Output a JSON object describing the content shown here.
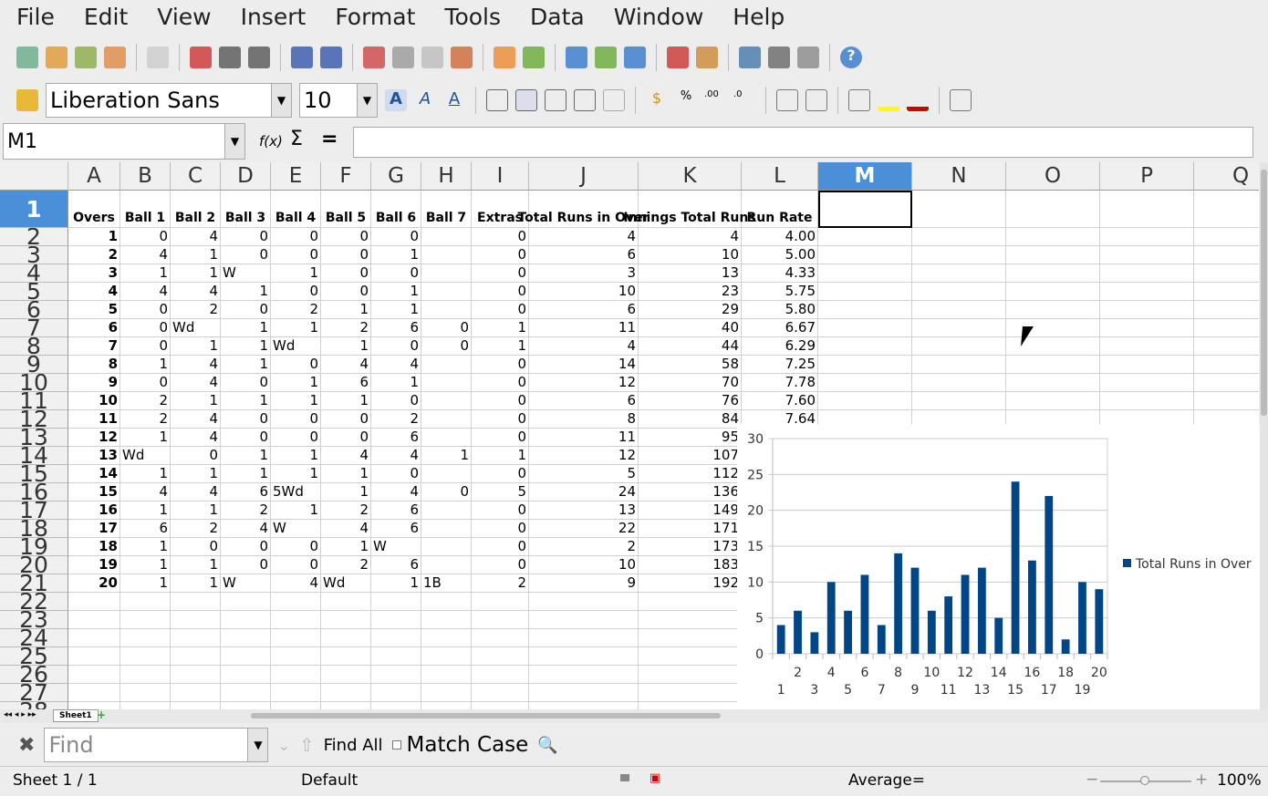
{
  "menu": [
    "File",
    "Edit",
    "View",
    "Insert",
    "Format",
    "Tools",
    "Data",
    "Window",
    "Help"
  ],
  "toolbar": {
    "font_name": "Liberation Sans",
    "font_size": "10"
  },
  "formula": {
    "cell_ref": "M1",
    "fx_icon": "function-wizard-icon",
    "value": ""
  },
  "columns": [
    "A",
    "B",
    "C",
    "D",
    "E",
    "F",
    "G",
    "H",
    "I",
    "J",
    "K",
    "L",
    "M",
    "N",
    "O",
    "P",
    "Q"
  ],
  "headers": [
    "Overs",
    "Ball 1",
    "Ball 2",
    "Ball 3",
    "Ball 4",
    "Ball 5",
    "Ball 6",
    "Ball 7",
    "Extras",
    "Total Runs in Over",
    "Innings Total Runs",
    "Run Rate"
  ],
  "rows": [
    [
      "1",
      "0",
      "4",
      "0",
      "0",
      "0",
      "0",
      "",
      "0",
      "4",
      "4",
      "4.00"
    ],
    [
      "2",
      "4",
      "1",
      "0",
      "0",
      "0",
      "1",
      "",
      "0",
      "6",
      "10",
      "5.00"
    ],
    [
      "3",
      "1",
      "1",
      "W",
      "1",
      "0",
      "0",
      "",
      "0",
      "3",
      "13",
      "4.33"
    ],
    [
      "4",
      "4",
      "4",
      "1",
      "0",
      "0",
      "1",
      "",
      "0",
      "10",
      "23",
      "5.75"
    ],
    [
      "5",
      "0",
      "2",
      "0",
      "2",
      "1",
      "1",
      "",
      "0",
      "6",
      "29",
      "5.80"
    ],
    [
      "6",
      "0",
      "Wd",
      "1",
      "1",
      "2",
      "6",
      "0",
      "1",
      "11",
      "40",
      "6.67"
    ],
    [
      "7",
      "0",
      "1",
      "1",
      "Wd",
      "1",
      "0",
      "0",
      "1",
      "4",
      "44",
      "6.29"
    ],
    [
      "8",
      "1",
      "4",
      "1",
      "0",
      "4",
      "4",
      "",
      "0",
      "14",
      "58",
      "7.25"
    ],
    [
      "9",
      "0",
      "4",
      "0",
      "1",
      "6",
      "1",
      "",
      "0",
      "12",
      "70",
      "7.78"
    ],
    [
      "10",
      "2",
      "1",
      "1",
      "1",
      "1",
      "0",
      "",
      "0",
      "6",
      "76",
      "7.60"
    ],
    [
      "11",
      "2",
      "4",
      "0",
      "0",
      "0",
      "2",
      "",
      "0",
      "8",
      "84",
      "7.64"
    ],
    [
      "12",
      "1",
      "4",
      "0",
      "0",
      "0",
      "6",
      "",
      "0",
      "11",
      "95",
      "7.92"
    ],
    [
      "13",
      "Wd",
      "0",
      "1",
      "1",
      "4",
      "4",
      "1",
      "1",
      "12",
      "107",
      "8.23"
    ],
    [
      "14",
      "1",
      "1",
      "1",
      "1",
      "1",
      "0",
      "",
      "0",
      "5",
      "112",
      "8.00"
    ],
    [
      "15",
      "4",
      "4",
      "6",
      "5Wd",
      "1",
      "4",
      "0",
      "5",
      "24",
      "136",
      "9.07"
    ],
    [
      "16",
      "1",
      "1",
      "2",
      "1",
      "2",
      "6",
      "",
      "0",
      "13",
      "149",
      "9.31"
    ],
    [
      "17",
      "6",
      "2",
      "4",
      "W",
      "4",
      "6",
      "",
      "0",
      "22",
      "171",
      "10.06"
    ],
    [
      "18",
      "1",
      "0",
      "0",
      "0",
      "1",
      "W",
      "",
      "0",
      "2",
      "173",
      "9.61"
    ],
    [
      "19",
      "1",
      "1",
      "0",
      "0",
      "2",
      "6",
      "",
      "0",
      "10",
      "183",
      "9.63"
    ],
    [
      "20",
      "1",
      "1",
      "W",
      "4",
      "Wd",
      "1",
      "1B",
      "2",
      "9",
      "192",
      "9.60"
    ]
  ],
  "chart_data": {
    "type": "bar",
    "categories": [
      "1",
      "2",
      "3",
      "4",
      "5",
      "6",
      "7",
      "8",
      "9",
      "10",
      "11",
      "12",
      "13",
      "14",
      "15",
      "16",
      "17",
      "18",
      "19",
      "20"
    ],
    "series": [
      {
        "name": "Total Runs in Over",
        "values": [
          4,
          6,
          3,
          10,
          6,
          11,
          4,
          14,
          12,
          6,
          8,
          11,
          12,
          5,
          24,
          13,
          22,
          2,
          10,
          9
        ],
        "color": "#004586"
      }
    ],
    "ylim": [
      0,
      30
    ],
    "yticks": [
      "0",
      "5",
      "10",
      "15",
      "20",
      "25",
      "30"
    ],
    "grid": true,
    "legend": "right"
  },
  "sheet_tab": "Sheet1",
  "findbar": {
    "placeholder": "Find",
    "find_all": "Find All",
    "match_case": "Match Case"
  },
  "status": {
    "sheet": "Sheet 1 / 1",
    "style": "Default",
    "sum": "Average=",
    "zoom": "100%"
  },
  "colors": {
    "selection": "#4a90d9",
    "bar": "#004586"
  }
}
